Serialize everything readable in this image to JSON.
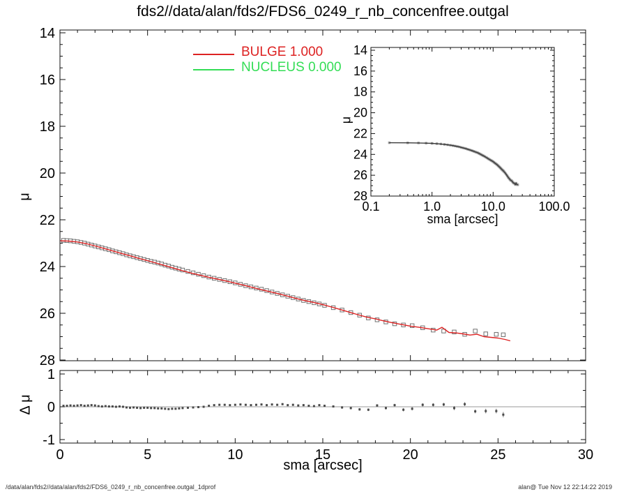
{
  "title": "fds2//data/alan/fds2/FDS6_0249_r_nb_concenfree.outgal",
  "legend": {
    "items": [
      {
        "label": "BULGE  1.000",
        "color": "#dd2222"
      },
      {
        "label": "NUCLEUS  0.000",
        "color": "#33dd55"
      }
    ]
  },
  "footer": {
    "left": "/data/alan/fds2//data/alan/fds2/FDS6_0249_r_nb_concenfree.outgal_1dprof",
    "right": "alan@  Tue Nov 12 22:14:22 2019"
  },
  "colors": {
    "bulge_line": "#dd2222",
    "nucleus_line": "#33dd55",
    "observed_marker": "#6f6f6f",
    "inset_marker": "#9a9a9a",
    "inset_line": "#3a3a3a",
    "residual_marker": "#4a4a4a",
    "error_bar": "#777777",
    "zero_line": "#999999",
    "frame": "#111111"
  },
  "chart_data": {
    "type": "scatter",
    "description": "Galaxy surface-brightness profile with bulge model fit, log-axis inset and residual panel",
    "profile_points": [
      [
        0.2,
        22.88
      ],
      [
        0.4,
        22.89
      ],
      [
        0.6,
        22.9
      ],
      [
        0.8,
        22.92
      ],
      [
        1.0,
        22.94
      ],
      [
        1.2,
        22.97
      ],
      [
        1.4,
        23.0
      ],
      [
        1.6,
        23.04
      ],
      [
        1.8,
        23.08
      ],
      [
        2.0,
        23.12
      ],
      [
        2.2,
        23.16
      ],
      [
        2.4,
        23.2
      ],
      [
        2.6,
        23.24
      ],
      [
        2.8,
        23.28
      ],
      [
        3.0,
        23.33
      ],
      [
        3.2,
        23.37
      ],
      [
        3.4,
        23.41
      ],
      [
        3.6,
        23.45
      ],
      [
        3.8,
        23.5
      ],
      [
        4.0,
        23.54
      ],
      [
        4.2,
        23.58
      ],
      [
        4.4,
        23.62
      ],
      [
        4.6,
        23.66
      ],
      [
        4.8,
        23.7
      ],
      [
        5.0,
        23.74
      ],
      [
        5.2,
        23.78
      ],
      [
        5.4,
        23.81
      ],
      [
        5.6,
        23.85
      ],
      [
        5.8,
        23.89
      ],
      [
        6.0,
        23.94
      ],
      [
        6.2,
        23.98
      ],
      [
        6.4,
        24.03
      ],
      [
        6.6,
        24.07
      ],
      [
        6.8,
        24.11
      ],
      [
        7.0,
        24.15
      ],
      [
        7.3,
        24.21
      ],
      [
        7.6,
        24.27
      ],
      [
        7.9,
        24.33
      ],
      [
        8.2,
        24.39
      ],
      [
        8.5,
        24.45
      ],
      [
        8.8,
        24.5
      ],
      [
        9.1,
        24.55
      ],
      [
        9.4,
        24.6
      ],
      [
        9.7,
        24.65
      ],
      [
        10.0,
        24.7
      ],
      [
        10.3,
        24.76
      ],
      [
        10.6,
        24.82
      ],
      [
        10.9,
        24.87
      ],
      [
        11.2,
        24.92
      ],
      [
        11.5,
        24.97
      ],
      [
        11.8,
        25.03
      ],
      [
        12.1,
        25.09
      ],
      [
        12.4,
        25.15
      ],
      [
        12.7,
        25.21
      ],
      [
        13.0,
        25.27
      ],
      [
        13.3,
        25.33
      ],
      [
        13.6,
        25.39
      ],
      [
        13.9,
        25.45
      ],
      [
        14.2,
        25.5
      ],
      [
        14.5,
        25.55
      ],
      [
        14.8,
        25.6
      ],
      [
        15.1,
        25.66
      ],
      [
        15.6,
        25.76
      ],
      [
        16.1,
        25.86
      ],
      [
        16.6,
        25.97
      ],
      [
        17.1,
        26.08
      ],
      [
        17.6,
        26.2
      ],
      [
        18.1,
        26.28
      ],
      [
        18.6,
        26.37
      ],
      [
        19.1,
        26.45
      ],
      [
        19.6,
        26.5
      ],
      [
        20.1,
        26.53
      ],
      [
        20.7,
        26.62
      ],
      [
        21.3,
        26.72
      ],
      [
        21.9,
        26.76
      ],
      [
        22.5,
        26.8
      ],
      [
        23.1,
        26.9
      ],
      [
        23.7,
        26.76
      ],
      [
        24.3,
        26.88
      ],
      [
        24.9,
        26.9
      ],
      [
        25.3,
        26.92
      ]
    ],
    "bulge_model": [
      [
        0.0,
        22.9
      ],
      [
        0.5,
        22.91
      ],
      [
        1.0,
        22.95
      ],
      [
        1.5,
        23.02
      ],
      [
        2.0,
        23.12
      ],
      [
        2.5,
        23.22
      ],
      [
        3.0,
        23.33
      ],
      [
        3.5,
        23.44
      ],
      [
        4.0,
        23.54
      ],
      [
        4.5,
        23.65
      ],
      [
        5.0,
        23.75
      ],
      [
        5.5,
        23.85
      ],
      [
        6.0,
        23.96
      ],
      [
        6.5,
        24.07
      ],
      [
        7.0,
        24.18
      ],
      [
        7.5,
        24.28
      ],
      [
        8.0,
        24.37
      ],
      [
        8.5,
        24.46
      ],
      [
        9.0,
        24.54
      ],
      [
        9.5,
        24.62
      ],
      [
        10.0,
        24.71
      ],
      [
        10.5,
        24.8
      ],
      [
        11.0,
        24.9
      ],
      [
        11.5,
        24.99
      ],
      [
        12.0,
        25.08
      ],
      [
        12.5,
        25.17
      ],
      [
        13.0,
        25.27
      ],
      [
        13.5,
        25.37
      ],
      [
        14.0,
        25.46
      ],
      [
        14.5,
        25.54
      ],
      [
        15.0,
        25.63
      ],
      [
        15.5,
        25.73
      ],
      [
        16.0,
        25.84
      ],
      [
        16.5,
        25.95
      ],
      [
        17.0,
        26.06
      ],
      [
        17.5,
        26.16
      ],
      [
        18.0,
        26.24
      ],
      [
        18.5,
        26.33
      ],
      [
        19.0,
        26.41
      ],
      [
        19.5,
        26.48
      ],
      [
        20.0,
        26.55
      ],
      [
        20.5,
        26.6
      ],
      [
        21.0,
        26.66
      ],
      [
        21.5,
        26.72
      ],
      [
        21.8,
        26.6
      ],
      [
        22.2,
        26.82
      ],
      [
        22.6,
        26.84
      ],
      [
        23.0,
        26.88
      ],
      [
        23.4,
        26.93
      ],
      [
        23.8,
        26.9
      ],
      [
        24.2,
        27.0
      ],
      [
        24.6,
        27.03
      ],
      [
        25.0,
        27.06
      ],
      [
        25.4,
        27.12
      ],
      [
        25.7,
        27.18
      ]
    ],
    "residuals": [
      [
        0.2,
        0.03,
        0.01
      ],
      [
        0.4,
        0.03,
        0.01
      ],
      [
        0.6,
        0.04,
        0.01
      ],
      [
        0.8,
        0.03,
        0.01
      ],
      [
        1.0,
        0.04,
        0.01
      ],
      [
        1.2,
        0.05,
        0.01
      ],
      [
        1.4,
        0.03,
        0.01
      ],
      [
        1.6,
        0.04,
        0.01
      ],
      [
        1.8,
        0.05,
        0.01
      ],
      [
        2.0,
        0.04,
        0.01
      ],
      [
        2.2,
        0.02,
        0.01
      ],
      [
        2.4,
        0.01,
        0.01
      ],
      [
        2.6,
        0.02,
        0.01
      ],
      [
        2.8,
        0.01,
        0.01
      ],
      [
        3.0,
        0.01,
        0.01
      ],
      [
        3.2,
        0.0,
        0.01
      ],
      [
        3.4,
        0.01,
        0.01
      ],
      [
        3.6,
        0.0,
        0.01
      ],
      [
        3.8,
        -0.02,
        0.01
      ],
      [
        4.0,
        -0.03,
        0.01
      ],
      [
        4.2,
        -0.02,
        0.01
      ],
      [
        4.4,
        -0.03,
        0.01
      ],
      [
        4.6,
        -0.04,
        0.01
      ],
      [
        4.8,
        -0.03,
        0.01
      ],
      [
        5.0,
        -0.03,
        0.01
      ],
      [
        5.2,
        -0.04,
        0.01
      ],
      [
        5.4,
        -0.04,
        0.01
      ],
      [
        5.6,
        -0.05,
        0.02
      ],
      [
        5.8,
        -0.05,
        0.02
      ],
      [
        6.0,
        -0.06,
        0.02
      ],
      [
        6.2,
        -0.07,
        0.02
      ],
      [
        6.4,
        -0.06,
        0.02
      ],
      [
        6.6,
        -0.06,
        0.02
      ],
      [
        6.8,
        -0.05,
        0.02
      ],
      [
        7.0,
        -0.04,
        0.02
      ],
      [
        7.3,
        -0.03,
        0.02
      ],
      [
        7.6,
        -0.02,
        0.02
      ],
      [
        7.9,
        -0.01,
        0.02
      ],
      [
        8.2,
        0.0,
        0.02
      ],
      [
        8.5,
        0.03,
        0.02
      ],
      [
        8.8,
        0.05,
        0.02
      ],
      [
        9.1,
        0.06,
        0.02
      ],
      [
        9.4,
        0.06,
        0.02
      ],
      [
        9.7,
        0.05,
        0.02
      ],
      [
        10.0,
        0.06,
        0.02
      ],
      [
        10.3,
        0.07,
        0.02
      ],
      [
        10.6,
        0.06,
        0.02
      ],
      [
        10.9,
        0.05,
        0.02
      ],
      [
        11.2,
        0.06,
        0.02
      ],
      [
        11.5,
        0.07,
        0.03
      ],
      [
        11.8,
        0.05,
        0.03
      ],
      [
        12.1,
        0.07,
        0.03
      ],
      [
        12.4,
        0.06,
        0.03
      ],
      [
        12.7,
        0.08,
        0.03
      ],
      [
        13.0,
        0.05,
        0.03
      ],
      [
        13.3,
        0.06,
        0.03
      ],
      [
        13.6,
        0.04,
        0.03
      ],
      [
        13.9,
        0.05,
        0.03
      ],
      [
        14.2,
        0.03,
        0.03
      ],
      [
        14.5,
        0.02,
        0.03
      ],
      [
        14.8,
        0.05,
        0.03
      ],
      [
        15.1,
        0.03,
        0.03
      ],
      [
        15.6,
        0.01,
        0.03
      ],
      [
        16.1,
        -0.02,
        0.04
      ],
      [
        16.6,
        -0.04,
        0.04
      ],
      [
        17.1,
        -0.08,
        0.04
      ],
      [
        17.6,
        -0.09,
        0.04
      ],
      [
        18.1,
        0.04,
        0.04
      ],
      [
        18.6,
        -0.04,
        0.04
      ],
      [
        19.1,
        0.05,
        0.04
      ],
      [
        19.6,
        -0.09,
        0.05
      ],
      [
        20.1,
        -0.06,
        0.05
      ],
      [
        20.7,
        0.06,
        0.05
      ],
      [
        21.3,
        0.06,
        0.05
      ],
      [
        21.9,
        0.07,
        0.05
      ],
      [
        22.5,
        -0.04,
        0.06
      ],
      [
        23.1,
        0.08,
        0.06
      ],
      [
        23.7,
        -0.14,
        0.06
      ],
      [
        24.3,
        -0.13,
        0.07
      ],
      [
        24.9,
        -0.13,
        0.07
      ],
      [
        25.3,
        -0.24,
        0.08
      ]
    ],
    "main": {
      "type": "scatter+line",
      "xlabel": "",
      "ylabel": "μ",
      "xlim": [
        0,
        30
      ],
      "ylim": [
        14,
        28
      ],
      "y_inverted": true,
      "xticks": {
        "major": [
          0,
          5,
          10,
          15,
          20,
          25,
          30
        ],
        "minor_step": 1,
        "show_labels": false
      },
      "yticks": {
        "major": [
          14,
          16,
          18,
          20,
          22,
          24,
          26,
          28
        ],
        "minor_step": 0.5,
        "labels": [
          "14",
          "16",
          "18",
          "20",
          "22",
          "24",
          "26",
          "28"
        ]
      },
      "series": [
        {
          "name": "observed",
          "data": "profile_points",
          "style": "open-square",
          "color": "#6f6f6f"
        },
        {
          "name": "bulge-model",
          "data": "bulge_model",
          "style": "line",
          "color": "#dd2222"
        }
      ]
    },
    "inset": {
      "type": "scatter+line",
      "xlabel": "sma [arcsec]",
      "ylabel": "μ",
      "xscale": "log",
      "xlim": [
        0.1,
        100
      ],
      "ylim": [
        14,
        28
      ],
      "y_inverted": true,
      "xticks": {
        "major": [
          0.1,
          1,
          10,
          100
        ],
        "labels": [
          "0.1",
          "1.0",
          "10.0",
          "100.0"
        ]
      },
      "yticks": {
        "major": [
          14,
          16,
          18,
          20,
          22,
          24,
          26,
          28
        ],
        "minor_step": 0.5,
        "labels": [
          "14",
          "16",
          "18",
          "20",
          "22",
          "24",
          "26",
          "28"
        ]
      },
      "series": [
        {
          "name": "observed",
          "data": "profile_points",
          "style": "filled-square",
          "color": "#9a9a9a"
        },
        {
          "name": "observed-line",
          "data": "profile_points",
          "style": "line",
          "color": "#3a3a3a"
        }
      ]
    },
    "residual_panel": {
      "type": "scatter",
      "xlabel": "sma [arcsec]",
      "ylabel": "Δ μ",
      "xlim": [
        0,
        30
      ],
      "ylim": [
        -1.1,
        1.1
      ],
      "zero_line": 0,
      "xticks": {
        "major": [
          0,
          5,
          10,
          15,
          20,
          25,
          30
        ],
        "minor_step": 1,
        "labels": [
          "0",
          "5",
          "10",
          "15",
          "20",
          "25",
          "30"
        ]
      },
      "yticks": {
        "major": [
          1,
          0,
          -1
        ],
        "minor_step": 0.5,
        "labels": [
          "1",
          "0",
          "-1"
        ]
      },
      "series": [
        {
          "name": "residual",
          "data": "residuals",
          "style": "errorbar-square",
          "color": "#4a4a4a"
        }
      ]
    }
  }
}
